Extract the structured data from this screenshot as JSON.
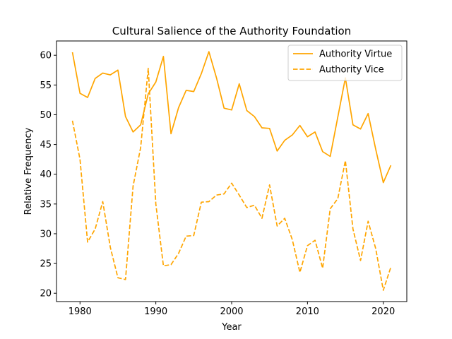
{
  "chart_data": {
    "type": "line",
    "title": "Cultural Salience of the Authority Foundation",
    "xlabel": "Year",
    "ylabel": "Relative Frequency",
    "xlim": [
      1976.9,
      2023.1
    ],
    "ylim": [
      18.6,
      62.4
    ],
    "xticks": [
      1980,
      1990,
      2000,
      2010,
      2020
    ],
    "yticks": [
      20,
      25,
      30,
      35,
      40,
      45,
      50,
      55,
      60
    ],
    "grid": false,
    "legend_position": "top-right",
    "x": [
      1979,
      1980,
      1981,
      1982,
      1983,
      1984,
      1985,
      1986,
      1987,
      1988,
      1989,
      1990,
      1991,
      1992,
      1993,
      1994,
      1995,
      1996,
      1997,
      1998,
      1999,
      2000,
      2001,
      2002,
      2003,
      2004,
      2005,
      2006,
      2007,
      2008,
      2009,
      2010,
      2011,
      2012,
      2013,
      2014,
      2015,
      2016,
      2017,
      2018,
      2019,
      2020,
      2021
    ],
    "series": [
      {
        "name": "Authority Virtue",
        "color": "#FFA500",
        "style": "solid",
        "values": [
          60.5,
          53.6,
          52.9,
          56.1,
          57.0,
          56.7,
          57.5,
          49.7,
          47.1,
          48.3,
          53.5,
          55.5,
          59.8,
          46.8,
          51.2,
          54.1,
          53.9,
          56.9,
          60.6,
          56.2,
          51.1,
          50.8,
          55.2,
          50.7,
          49.7,
          47.8,
          47.7,
          43.9,
          45.7,
          46.6,
          48.2,
          46.3,
          47.1,
          43.8,
          43.0,
          49.6,
          56.2,
          48.3,
          47.6,
          50.2,
          44.2,
          38.6,
          41.5
        ]
      },
      {
        "name": "Authority Vice",
        "color": "#FFA500",
        "style": "dashed",
        "values": [
          49.0,
          42.5,
          28.6,
          30.8,
          35.4,
          27.7,
          22.6,
          22.3,
          38.0,
          44.5,
          57.8,
          35.0,
          24.6,
          24.8,
          26.7,
          29.6,
          29.7,
          35.3,
          35.4,
          36.5,
          36.7,
          38.5,
          36.5,
          34.4,
          34.8,
          32.6,
          38.2,
          31.3,
          32.6,
          29.0,
          23.5,
          28.0,
          28.9,
          24.2,
          34.2,
          35.9,
          42.3,
          30.8,
          25.5,
          32.1,
          27.5,
          20.5,
          24.4
        ]
      }
    ]
  }
}
